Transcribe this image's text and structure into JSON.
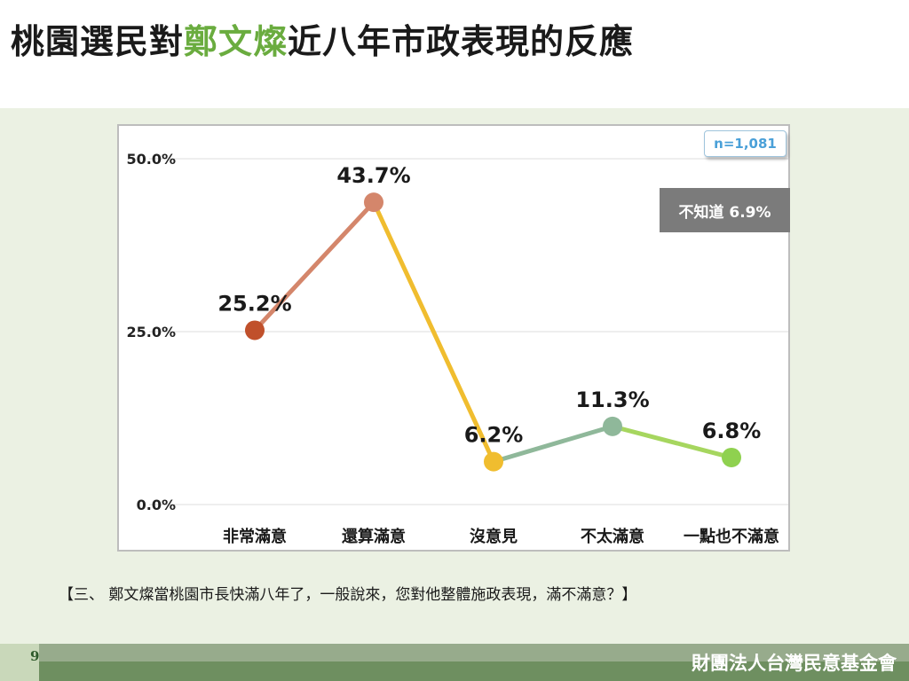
{
  "title": {
    "prefix": "桃園選民對",
    "highlight": "鄭文燦",
    "suffix": "近八年市政表現的反應"
  },
  "colors": {
    "highlight": "#6aac3f"
  },
  "sample_size": "n=1,081",
  "unknown_note": "不知道 6.9%",
  "question": "【三、 鄭文燦當桃園市長快滿八年了，一般說來，您對他整體施政表現，滿不滿意？】",
  "footer": {
    "page": "9",
    "org": "財團法人台灣民意基金會"
  },
  "chart_data": {
    "type": "line",
    "categories": [
      "非常滿意",
      "還算滿意",
      "沒意見",
      "不太滿意",
      "一點也不滿意"
    ],
    "values": [
      25.2,
      43.7,
      6.2,
      11.3,
      6.8
    ],
    "value_labels": [
      "25.2%",
      "43.7%",
      "6.2%",
      "11.3%",
      "6.8%"
    ],
    "point_colors": [
      "#c0502b",
      "#d4866b",
      "#f0bd2f",
      "#8fb89a",
      "#8fd14f"
    ],
    "segment_colors": [
      "#d4866b",
      "#f0bd2f",
      "#8fb89a",
      "#a6d65f"
    ],
    "yticks": [
      0,
      25,
      50
    ],
    "ytick_labels": [
      "0.0%",
      "25.0%",
      "50.0%"
    ],
    "ylim": [
      0,
      50
    ],
    "grid": true
  }
}
